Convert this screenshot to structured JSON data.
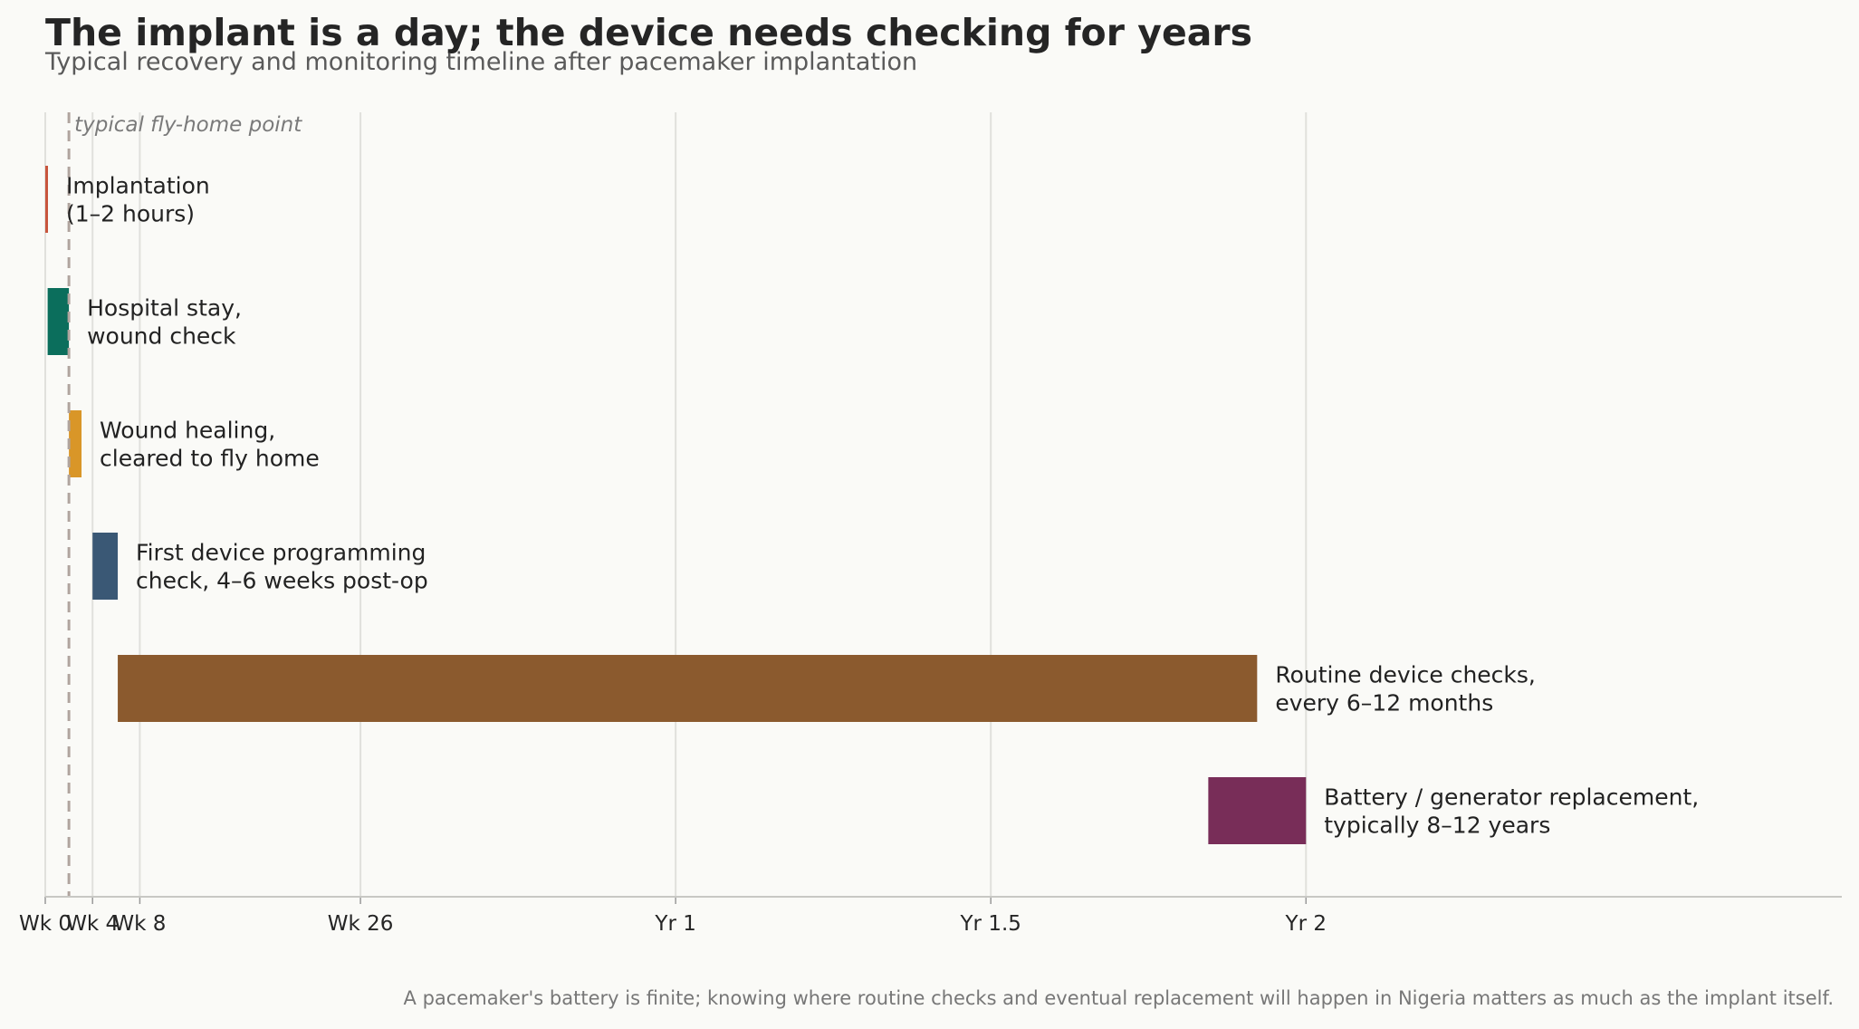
{
  "title": "The implant is a day; the device needs checking for years",
  "subtitle": "Typical recovery and monitoring timeline after pacemaker implantation",
  "footnote": "A pacemaker's battery is finite; knowing where routine checks and eventual replacement will happen in Nigeria matters as much as the implant itself.",
  "chart_data": {
    "type": "gantt",
    "x_unit": "weeks after implantation",
    "xlim": [
      0,
      114
    ],
    "grid": "vertical",
    "x_ticks": [
      {
        "value": 0,
        "label": "Wk 0"
      },
      {
        "value": 3,
        "label": "Wk 4"
      },
      {
        "value": 6,
        "label": "Wk 8"
      },
      {
        "value": 20,
        "label": "Wk 26"
      },
      {
        "value": 40,
        "label": "Yr 1"
      },
      {
        "value": 60,
        "label": "Yr 1.5"
      },
      {
        "value": 80,
        "label": "Yr 2"
      }
    ],
    "tasks": [
      {
        "label": [
          "Implantation",
          "(1–2 hours)"
        ],
        "start": 0,
        "end": 0.12,
        "color": "#c8553d"
      },
      {
        "label": [
          "Hospital stay,",
          "wound check"
        ],
        "start": 0.15,
        "end": 1.5,
        "color": "#0b6e5c"
      },
      {
        "label": [
          "Wound healing,",
          "cleared to fly home"
        ],
        "start": 1.5,
        "end": 2.3,
        "color": "#d99628"
      },
      {
        "label": [
          "First device programming",
          "check, 4–6 weeks post-op"
        ],
        "start": 3,
        "end": 4.6,
        "color": "#3a5875"
      },
      {
        "label": [
          "Routine device checks,",
          "every 6–12 months"
        ],
        "start": 4.6,
        "end": 76.9,
        "color": "#8b5a2e"
      },
      {
        "label": [
          "Battery / generator replacement,",
          "typically 8–12 years"
        ],
        "start": 73.8,
        "end": 80,
        "color": "#782d58"
      }
    ],
    "reference_line": {
      "value": 1.5,
      "label": "typical fly-home point",
      "style": "dashed",
      "color": "#b0a49e"
    }
  }
}
